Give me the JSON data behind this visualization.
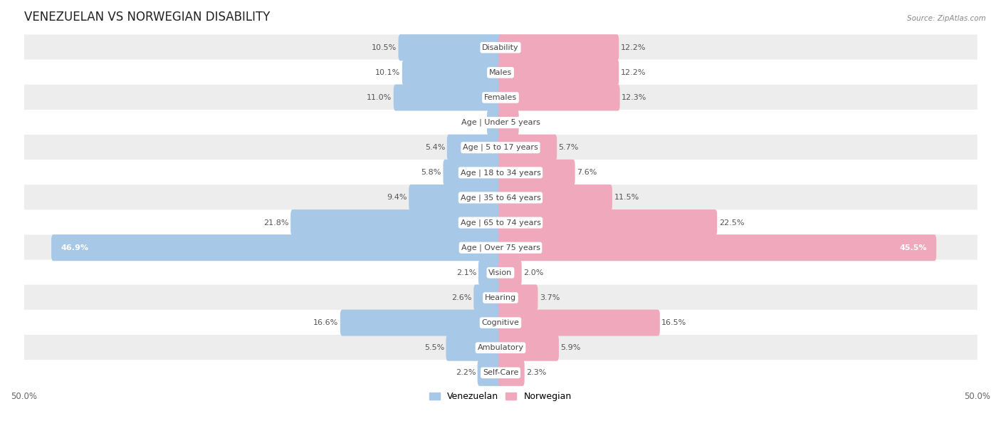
{
  "title": "VENEZUELAN VS NORWEGIAN DISABILITY",
  "source": "Source: ZipAtlas.com",
  "categories": [
    "Disability",
    "Males",
    "Females",
    "Age | Under 5 years",
    "Age | 5 to 17 years",
    "Age | 18 to 34 years",
    "Age | 35 to 64 years",
    "Age | 65 to 74 years",
    "Age | Over 75 years",
    "Vision",
    "Hearing",
    "Cognitive",
    "Ambulatory",
    "Self-Care"
  ],
  "venezuelan": [
    10.5,
    10.1,
    11.0,
    1.2,
    5.4,
    5.8,
    9.4,
    21.8,
    46.9,
    2.1,
    2.6,
    16.6,
    5.5,
    2.2
  ],
  "norwegian": [
    12.2,
    12.2,
    12.3,
    1.7,
    5.7,
    7.6,
    11.5,
    22.5,
    45.5,
    2.0,
    3.7,
    16.5,
    5.9,
    2.3
  ],
  "venezuelan_color": "#a8c8e8",
  "norwegian_color": "#f0a8bc",
  "venezuelan_color_dark": "#5b9bd5",
  "norwegian_color_dark": "#e06880",
  "row_bg_gray": "#ededee",
  "row_bg_white": "#ffffff",
  "axis_limit": 50.0,
  "legend_venezuelan": "Venezuelan",
  "legend_norwegian": "Norwegian",
  "title_fontsize": 12,
  "label_fontsize": 8,
  "cat_fontsize": 8,
  "bar_height": 0.62,
  "value_color": "#555555",
  "cat_label_color": "#444444"
}
